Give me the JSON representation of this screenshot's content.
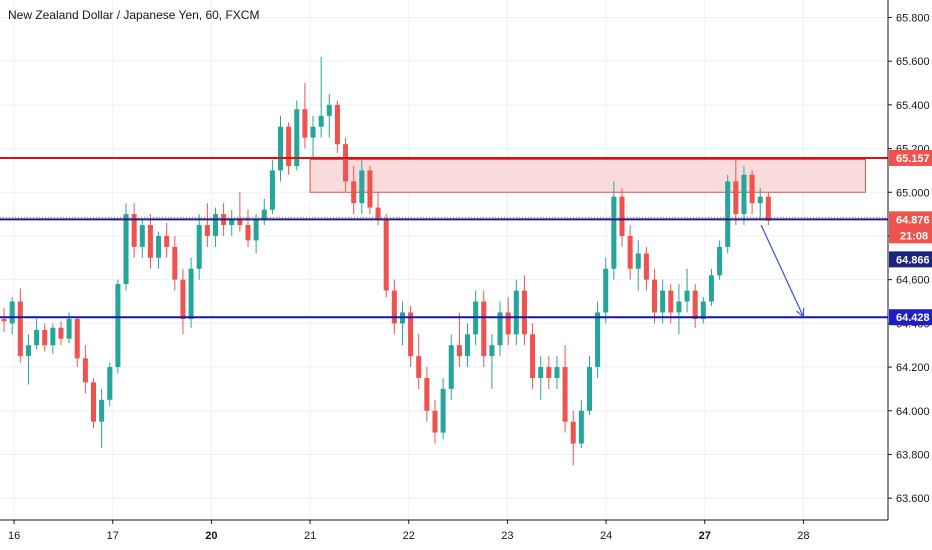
{
  "chart_data": {
    "type": "candlestick",
    "title": "New Zealand Dollar / Japanese Yen, 60, FXCM",
    "ylim": [
      63.5,
      65.88
    ],
    "xlim": [
      0,
      31.5
    ],
    "yticks": [
      63.6,
      63.8,
      64.0,
      64.2,
      64.4,
      64.6,
      64.8,
      65.0,
      65.2,
      65.4,
      65.6,
      65.8
    ],
    "ytick_labels": [
      "63.600",
      "63.800",
      "64.000",
      "64.200",
      "64.400",
      "64.600",
      "64.800",
      "65.000",
      "65.200",
      "65.400",
      "65.600",
      "65.800"
    ],
    "xticks": [
      {
        "label": "16",
        "x": 0.5,
        "bold": false
      },
      {
        "label": "17",
        "x": 4,
        "bold": false
      },
      {
        "label": "20",
        "x": 7.5,
        "bold": true
      },
      {
        "label": "21",
        "x": 11,
        "bold": false
      },
      {
        "label": "22",
        "x": 14.5,
        "bold": false
      },
      {
        "label": "23",
        "x": 18,
        "bold": false
      },
      {
        "label": "24",
        "x": 21.5,
        "bold": false
      },
      {
        "label": "27",
        "x": 25,
        "bold": true
      },
      {
        "label": "28",
        "x": 28.5,
        "bold": false
      }
    ],
    "candles": [
      [
        64.42,
        64.47,
        64.36,
        64.41
      ],
      [
        64.4,
        64.52,
        64.35,
        64.5
      ],
      [
        64.5,
        64.56,
        64.22,
        64.25
      ],
      [
        64.25,
        64.35,
        64.12,
        64.3
      ],
      [
        64.3,
        64.42,
        64.28,
        64.37
      ],
      [
        64.37,
        64.4,
        64.27,
        64.3
      ],
      [
        64.3,
        64.4,
        64.26,
        64.38
      ],
      [
        64.38,
        64.41,
        64.3,
        64.33
      ],
      [
        64.33,
        64.45,
        64.31,
        64.42
      ],
      [
        64.42,
        64.43,
        64.2,
        64.24
      ],
      [
        64.24,
        64.3,
        64.08,
        64.13
      ],
      [
        64.13,
        64.15,
        63.92,
        63.95
      ],
      [
        63.95,
        64.1,
        63.83,
        64.05
      ],
      [
        64.05,
        64.22,
        64.02,
        64.2
      ],
      [
        64.2,
        64.6,
        64.17,
        64.58
      ],
      [
        64.58,
        64.95,
        64.55,
        64.9
      ],
      [
        64.9,
        64.95,
        64.7,
        64.75
      ],
      [
        64.75,
        64.88,
        64.7,
        64.85
      ],
      [
        64.85,
        64.9,
        64.65,
        64.7
      ],
      [
        64.7,
        64.82,
        64.65,
        64.8
      ],
      [
        64.8,
        64.86,
        64.7,
        64.75
      ],
      [
        64.75,
        64.8,
        64.55,
        64.6
      ],
      [
        64.6,
        64.65,
        64.35,
        64.42
      ],
      [
        64.42,
        64.7,
        64.38,
        64.65
      ],
      [
        64.65,
        64.9,
        64.6,
        64.85
      ],
      [
        64.85,
        64.95,
        64.75,
        64.8
      ],
      [
        64.8,
        64.93,
        64.75,
        64.9
      ],
      [
        64.9,
        64.95,
        64.8,
        64.85
      ],
      [
        64.85,
        64.92,
        64.8,
        64.88
      ],
      [
        64.88,
        65.0,
        64.82,
        64.85
      ],
      [
        64.85,
        64.92,
        64.75,
        64.78
      ],
      [
        64.78,
        64.9,
        64.72,
        64.88
      ],
      [
        64.88,
        64.97,
        64.85,
        64.92
      ],
      [
        64.92,
        65.15,
        64.9,
        65.1
      ],
      [
        65.1,
        65.35,
        65.05,
        65.3
      ],
      [
        65.3,
        65.32,
        65.08,
        65.12
      ],
      [
        65.12,
        65.42,
        65.1,
        65.38
      ],
      [
        65.38,
        65.5,
        65.2,
        65.25
      ],
      [
        65.25,
        65.35,
        65.15,
        65.3
      ],
      [
        65.3,
        65.62,
        65.25,
        65.35
      ],
      [
        65.35,
        65.45,
        65.25,
        65.4
      ],
      [
        65.4,
        65.42,
        65.18,
        65.22
      ],
      [
        65.22,
        65.25,
        65.0,
        65.05
      ],
      [
        65.05,
        65.12,
        64.9,
        64.95
      ],
      [
        64.95,
        65.15,
        64.9,
        65.1
      ],
      [
        65.1,
        65.12,
        64.9,
        64.93
      ],
      [
        64.93,
        65.0,
        64.85,
        64.88
      ],
      [
        64.88,
        64.9,
        64.52,
        64.55
      ],
      [
        64.55,
        64.6,
        64.35,
        64.4
      ],
      [
        64.4,
        64.5,
        64.3,
        64.45
      ],
      [
        64.45,
        64.48,
        64.2,
        64.25
      ],
      [
        64.25,
        64.35,
        64.1,
        64.15
      ],
      [
        64.15,
        64.2,
        63.95,
        64.0
      ],
      [
        64.0,
        64.05,
        63.85,
        63.9
      ],
      [
        63.9,
        64.15,
        63.87,
        64.1
      ],
      [
        64.1,
        64.35,
        64.05,
        64.3
      ],
      [
        64.3,
        64.45,
        64.2,
        64.25
      ],
      [
        64.25,
        64.4,
        64.2,
        64.35
      ],
      [
        64.35,
        64.55,
        64.3,
        64.5
      ],
      [
        64.5,
        64.55,
        64.2,
        64.25
      ],
      [
        64.25,
        64.35,
        64.1,
        64.3
      ],
      [
        64.3,
        64.5,
        64.25,
        64.45
      ],
      [
        64.45,
        64.52,
        64.3,
        64.35
      ],
      [
        64.35,
        64.6,
        64.3,
        64.55
      ],
      [
        64.55,
        64.62,
        64.3,
        64.35
      ],
      [
        64.35,
        64.4,
        64.1,
        64.15
      ],
      [
        64.15,
        64.25,
        64.05,
        64.2
      ],
      [
        64.2,
        64.25,
        64.1,
        64.15
      ],
      [
        64.15,
        64.25,
        64.1,
        64.2
      ],
      [
        64.2,
        64.3,
        63.9,
        63.95
      ],
      [
        63.95,
        64.0,
        63.75,
        63.85
      ],
      [
        63.85,
        64.05,
        63.83,
        64.0
      ],
      [
        64.0,
        64.25,
        63.98,
        64.2
      ],
      [
        64.2,
        64.5,
        64.15,
        64.45
      ],
      [
        64.45,
        64.7,
        64.4,
        64.65
      ],
      [
        64.65,
        65.05,
        64.6,
        64.98
      ],
      [
        64.98,
        65.02,
        64.75,
        64.8
      ],
      [
        64.8,
        64.85,
        64.6,
        64.65
      ],
      [
        64.65,
        64.78,
        64.55,
        64.72
      ],
      [
        64.72,
        64.75,
        64.55,
        64.6
      ],
      [
        64.6,
        64.65,
        64.4,
        64.45
      ],
      [
        64.45,
        64.6,
        64.4,
        64.55
      ],
      [
        64.55,
        64.58,
        64.4,
        64.45
      ],
      [
        64.45,
        64.58,
        64.35,
        64.5
      ],
      [
        64.5,
        64.65,
        64.45,
        64.55
      ],
      [
        64.55,
        64.58,
        64.38,
        64.42
      ],
      [
        64.42,
        64.52,
        64.4,
        64.5
      ],
      [
        64.5,
        64.65,
        64.48,
        64.62
      ],
      [
        64.62,
        64.78,
        64.6,
        64.75
      ],
      [
        64.75,
        65.08,
        64.72,
        65.05
      ],
      [
        65.05,
        65.15,
        64.85,
        64.9
      ],
      [
        64.9,
        65.12,
        64.85,
        65.08
      ],
      [
        65.08,
        65.1,
        64.9,
        64.95
      ],
      [
        64.95,
        65.02,
        64.88,
        64.98
      ],
      [
        64.98,
        65.0,
        64.85,
        64.87
      ]
    ],
    "annotations": {
      "resistance_level": 65.157,
      "current_price_level": 64.876,
      "support_level": 64.428,
      "resistance_zone": {
        "x_start": 11.0,
        "x_end": 30.7,
        "y_low": 65.0,
        "y_high": 65.15
      },
      "projection": {
        "x_start": 27.0,
        "y_start": 64.85,
        "x_end": 28.5,
        "y_end": 64.43
      }
    },
    "price_tags": {
      "resistance": "65.157",
      "current": "64.876",
      "countdown": "21:08",
      "prev_close": "64.866",
      "support": "64.428"
    },
    "colors": {
      "up": "#26a69a",
      "down": "#ef5350",
      "resistance": "#e01010",
      "current": "#1a237e",
      "support": "#1515b0",
      "zone_fill": "#f8cfcf",
      "zone_border": "#e05050",
      "arrow": "#3d4fcf",
      "tag_red": "#ef5350",
      "tag_navy": "#1a237e",
      "tag_blue": "#1e1ec8"
    }
  }
}
